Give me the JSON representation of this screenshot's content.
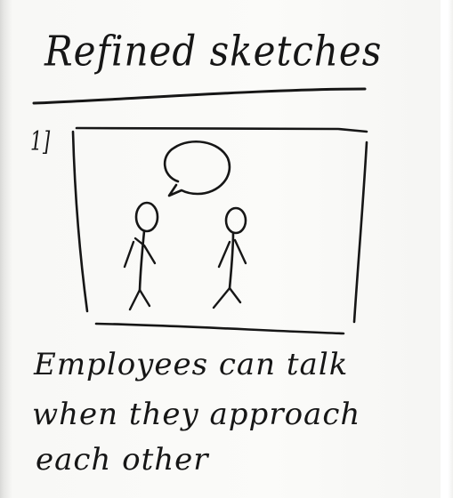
{
  "sketch_page": {
    "title": "Refined sketches",
    "step_label": "1]",
    "caption_lines": [
      "Employees can talk",
      "when they approach",
      "each other"
    ],
    "ink_color": "#161616",
    "paper_color": "#fbfbf9"
  }
}
